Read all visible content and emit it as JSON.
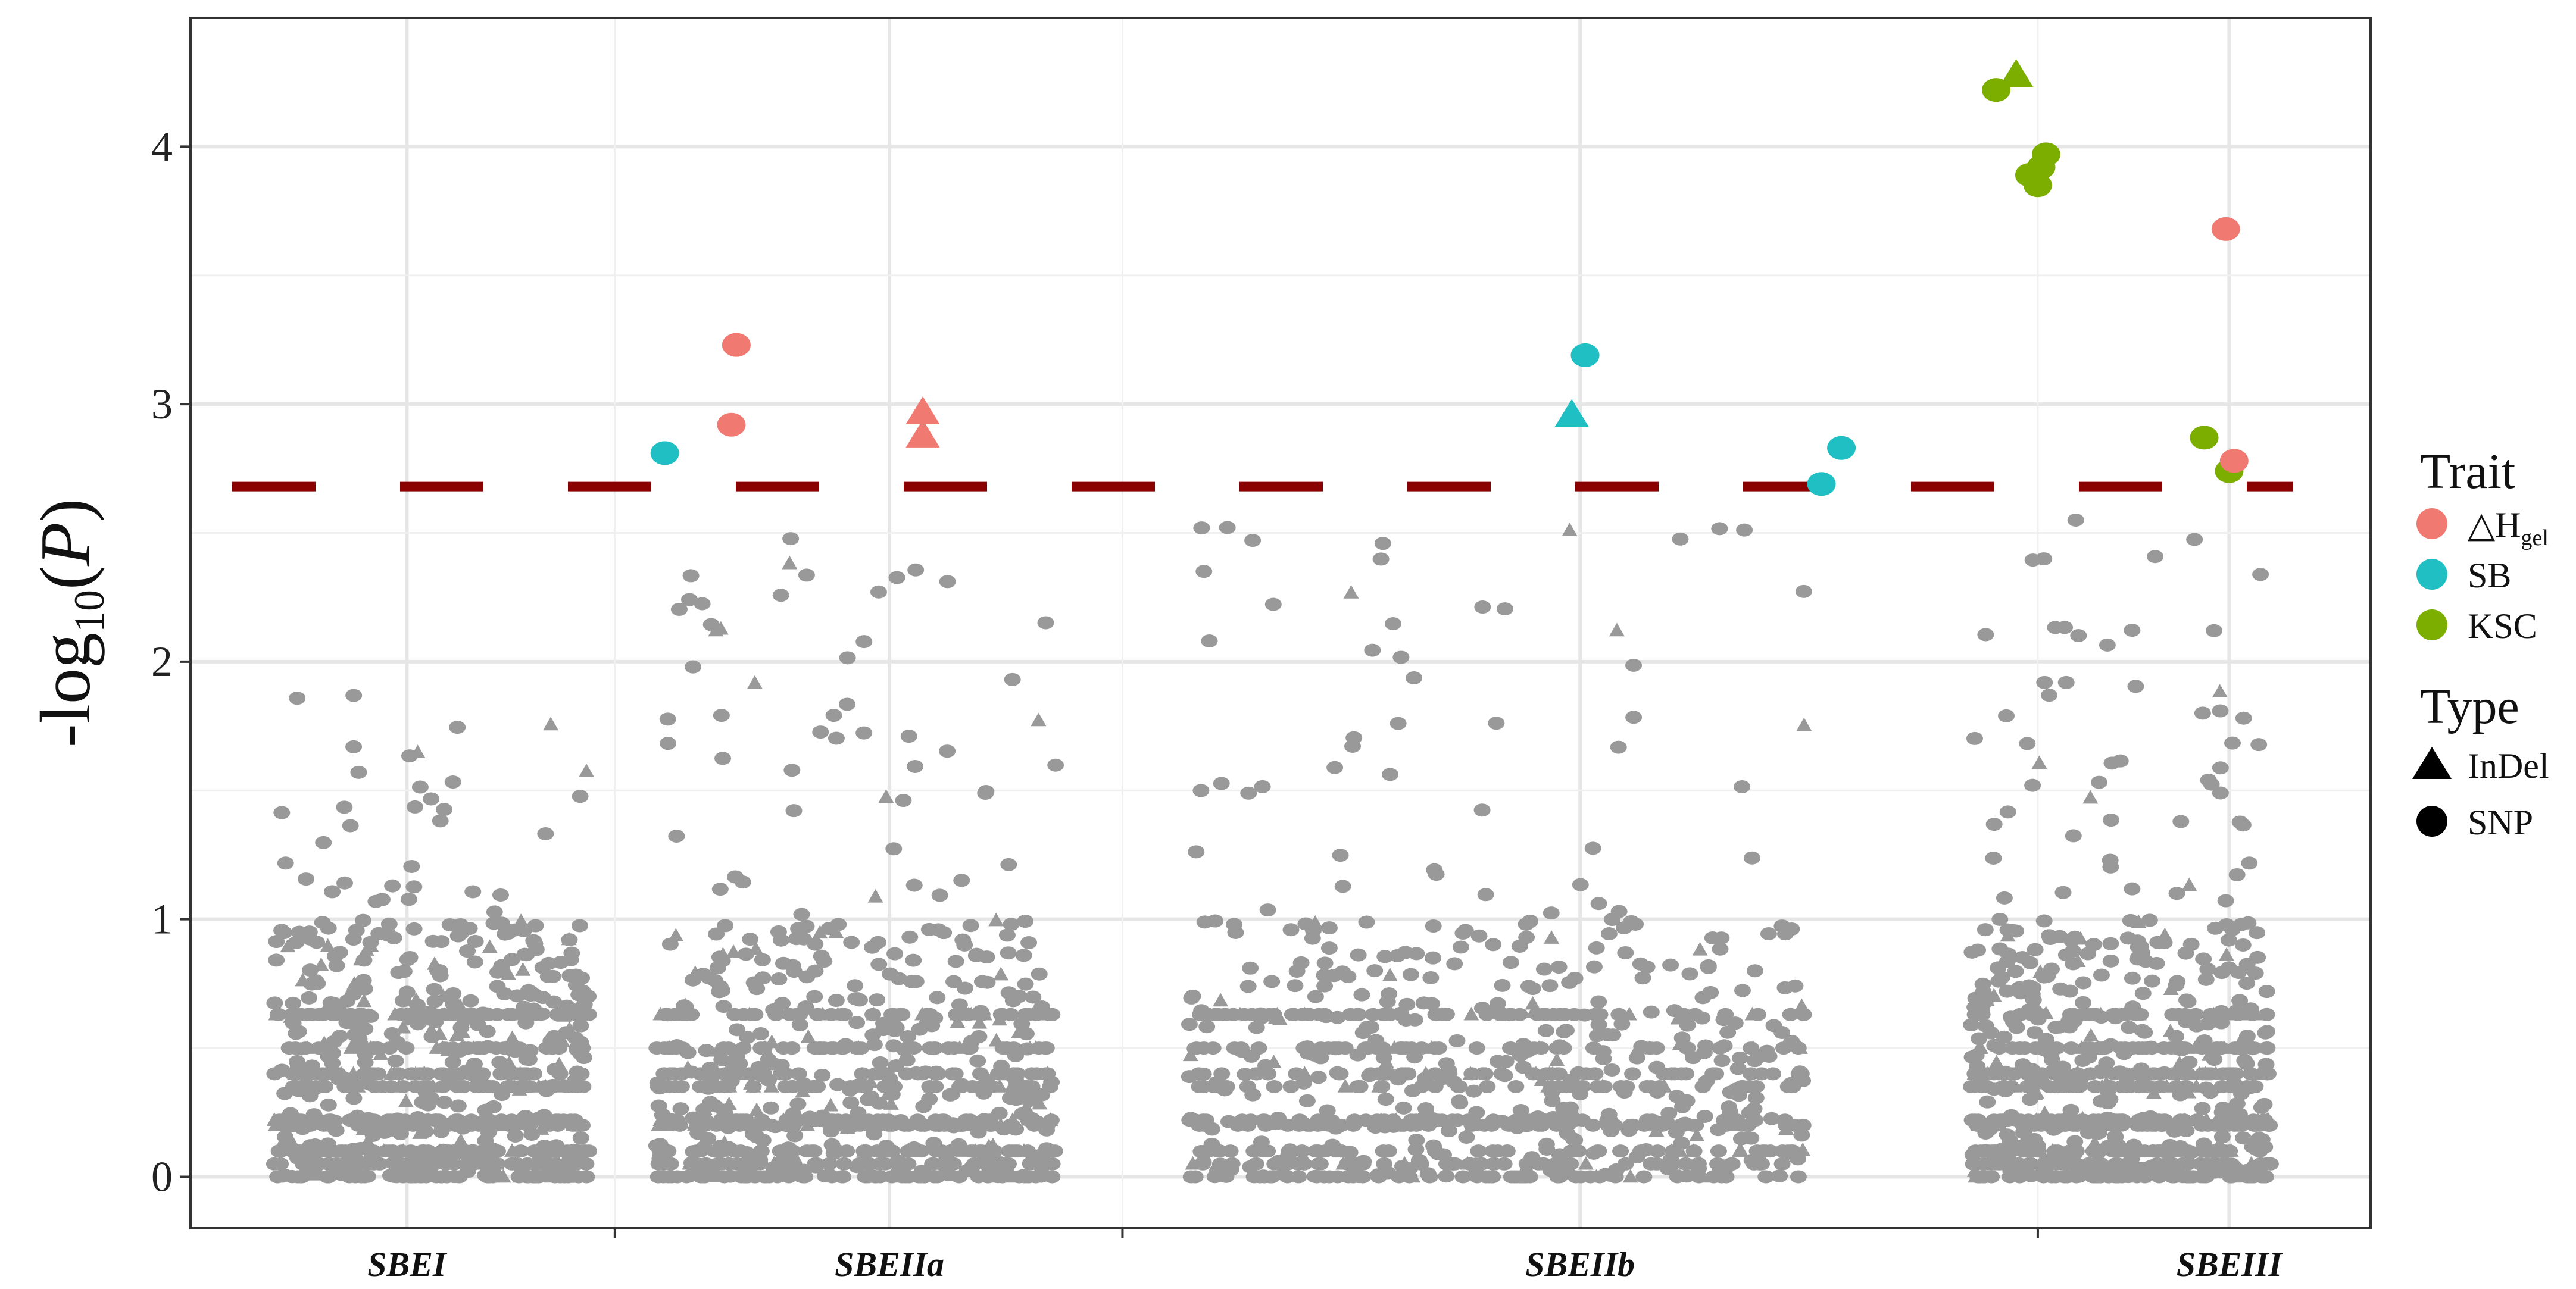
{
  "chart_data": {
    "type": "scatter",
    "ylabel": "-log10(P)",
    "ylabel_parts": {
      "prefix": "-log",
      "sub": "10",
      "open": "(",
      "var": "P",
      "close": ")"
    },
    "ylim": [
      -0.2,
      4.5
    ],
    "yticks": [
      0,
      1,
      2,
      3,
      4
    ],
    "grid": true,
    "categories": [
      "SBEI",
      "SBEIIa",
      "SBEIIb",
      "SBEIII"
    ],
    "category_centers": [
      0.8,
      3.7,
      7.85,
      11.75
    ],
    "category_separators": [
      2.05,
      5.1,
      10.6
    ],
    "xlim": [
      -0.5,
      12.6
    ],
    "threshold": {
      "value": 2.68,
      "color": "#8b0000",
      "style": "dashed"
    },
    "legend": {
      "position": "right",
      "trait_title": "Trait",
      "traits": [
        {
          "name": "△H",
          "sub": "gel",
          "color": "#f07a72"
        },
        {
          "name": "SB",
          "color": "#1fbfc4"
        },
        {
          "name": "KSC",
          "color": "#7cae00"
        }
      ],
      "type_title": "Type",
      "types": [
        {
          "name": "InDel",
          "shape": "triangle"
        },
        {
          "name": "SNP",
          "shape": "circle"
        }
      ]
    },
    "background_color": "#999999",
    "background_points_description": "Dense columns of non-significant markers (grey) per gene region; most below 1.0",
    "background_clusters": [
      {
        "gene": "SBEI",
        "x_range": [
          0.0,
          1.9
        ],
        "y_max": 1.87,
        "density": 1.0
      },
      {
        "gene": "SBEIIa",
        "x_range": [
          2.3,
          4.7
        ],
        "y_max": 2.57,
        "density": 1.0
      },
      {
        "gene": "SBEIIb",
        "x_range": [
          5.5,
          9.2
        ],
        "y_max": 2.65,
        "density": 1.0
      },
      {
        "gene": "SBEIII",
        "x_range": [
          10.2,
          12.0
        ],
        "y_max": 2.57,
        "density": 1.0
      }
    ],
    "significant_points": [
      {
        "x": 2.35,
        "y": 2.81,
        "trait": "SB",
        "type": "SNP"
      },
      {
        "x": 2.75,
        "y": 2.92,
        "trait": "△Hgel",
        "type": "SNP"
      },
      {
        "x": 2.78,
        "y": 3.23,
        "trait": "△Hgel",
        "type": "SNP"
      },
      {
        "x": 3.9,
        "y": 2.97,
        "trait": "△Hgel",
        "type": "InDel"
      },
      {
        "x": 3.9,
        "y": 2.88,
        "trait": "△Hgel",
        "type": "InDel"
      },
      {
        "x": 7.8,
        "y": 2.96,
        "trait": "SB",
        "type": "InDel"
      },
      {
        "x": 7.88,
        "y": 3.19,
        "trait": "SB",
        "type": "SNP"
      },
      {
        "x": 9.3,
        "y": 2.69,
        "trait": "SB",
        "type": "SNP"
      },
      {
        "x": 9.42,
        "y": 2.83,
        "trait": "SB",
        "type": "SNP"
      },
      {
        "x": 10.35,
        "y": 4.22,
        "trait": "KSC",
        "type": "SNP"
      },
      {
        "x": 10.47,
        "y": 4.28,
        "trait": "KSC",
        "type": "InDel"
      },
      {
        "x": 10.55,
        "y": 3.89,
        "trait": "KSC",
        "type": "SNP"
      },
      {
        "x": 10.6,
        "y": 3.85,
        "trait": "KSC",
        "type": "SNP"
      },
      {
        "x": 10.62,
        "y": 3.92,
        "trait": "KSC",
        "type": "SNP"
      },
      {
        "x": 10.65,
        "y": 3.97,
        "trait": "KSC",
        "type": "SNP"
      },
      {
        "x": 11.6,
        "y": 2.87,
        "trait": "KSC",
        "type": "SNP"
      },
      {
        "x": 11.75,
        "y": 2.74,
        "trait": "KSC",
        "type": "SNP"
      },
      {
        "x": 11.78,
        "y": 2.78,
        "trait": "△Hgel",
        "type": "SNP"
      },
      {
        "x": 11.73,
        "y": 3.68,
        "trait": "△Hgel",
        "type": "SNP"
      }
    ]
  }
}
